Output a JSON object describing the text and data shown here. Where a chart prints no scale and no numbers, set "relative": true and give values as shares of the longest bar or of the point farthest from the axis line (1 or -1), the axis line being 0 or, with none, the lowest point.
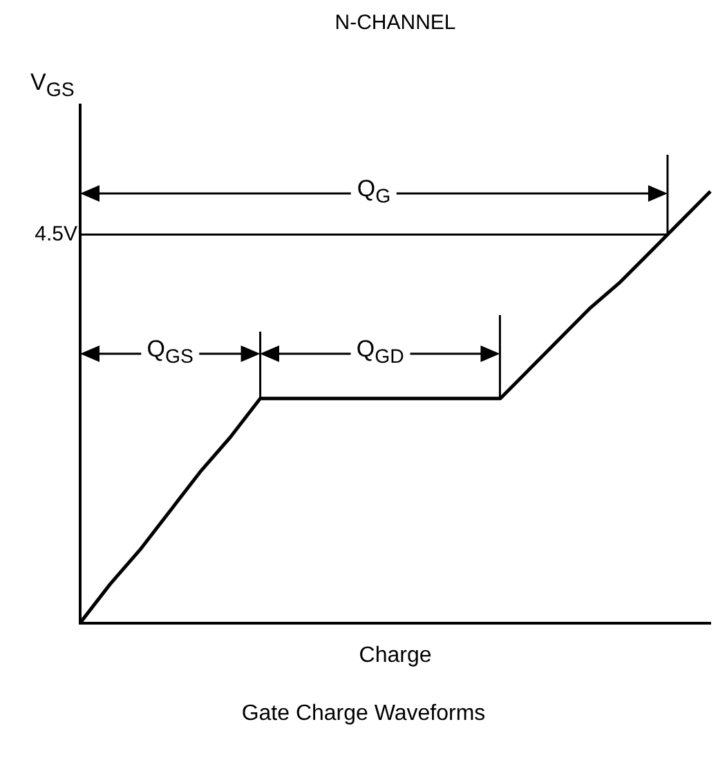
{
  "chart_data": {
    "type": "line",
    "title": "N-CHANNEL",
    "xlabel": "Charge",
    "ylabel": "V$_{GS}$",
    "relative": true,
    "color": "#000000",
    "marker": "none",
    "line_style": "solid",
    "grid": false,
    "legend": false,
    "tick_labels": false,
    "categories": [
      null,
      null,
      null,
      null,
      null,
      null,
      null,
      null,
      null,
      null,
      null,
      null,
      null,
      null,
      null,
      null,
      null,
      null,
      null,
      null,
      null,
      null
    ],
    "values": [
      0,
      0.09,
      0.17,
      0.26,
      0.35,
      0.43,
      0.52,
      0.52,
      0.52,
      0.52,
      0.52,
      0.52,
      0.52,
      0.52,
      0.52,
      0.59,
      0.66,
      0.73,
      0.79,
      0.86,
      0.93,
      1.0
    ],
    "ref_lines": [
      {
        "axis": "y",
        "value": 0.9,
        "label": "4.5V",
        "color": "#000000"
      }
    ],
    "annotations": [
      "Q$_{G}$",
      "Q$_{GS}$",
      "Q$_{GD}$",
      "Gate Charge Waveforms"
    ]
  }
}
